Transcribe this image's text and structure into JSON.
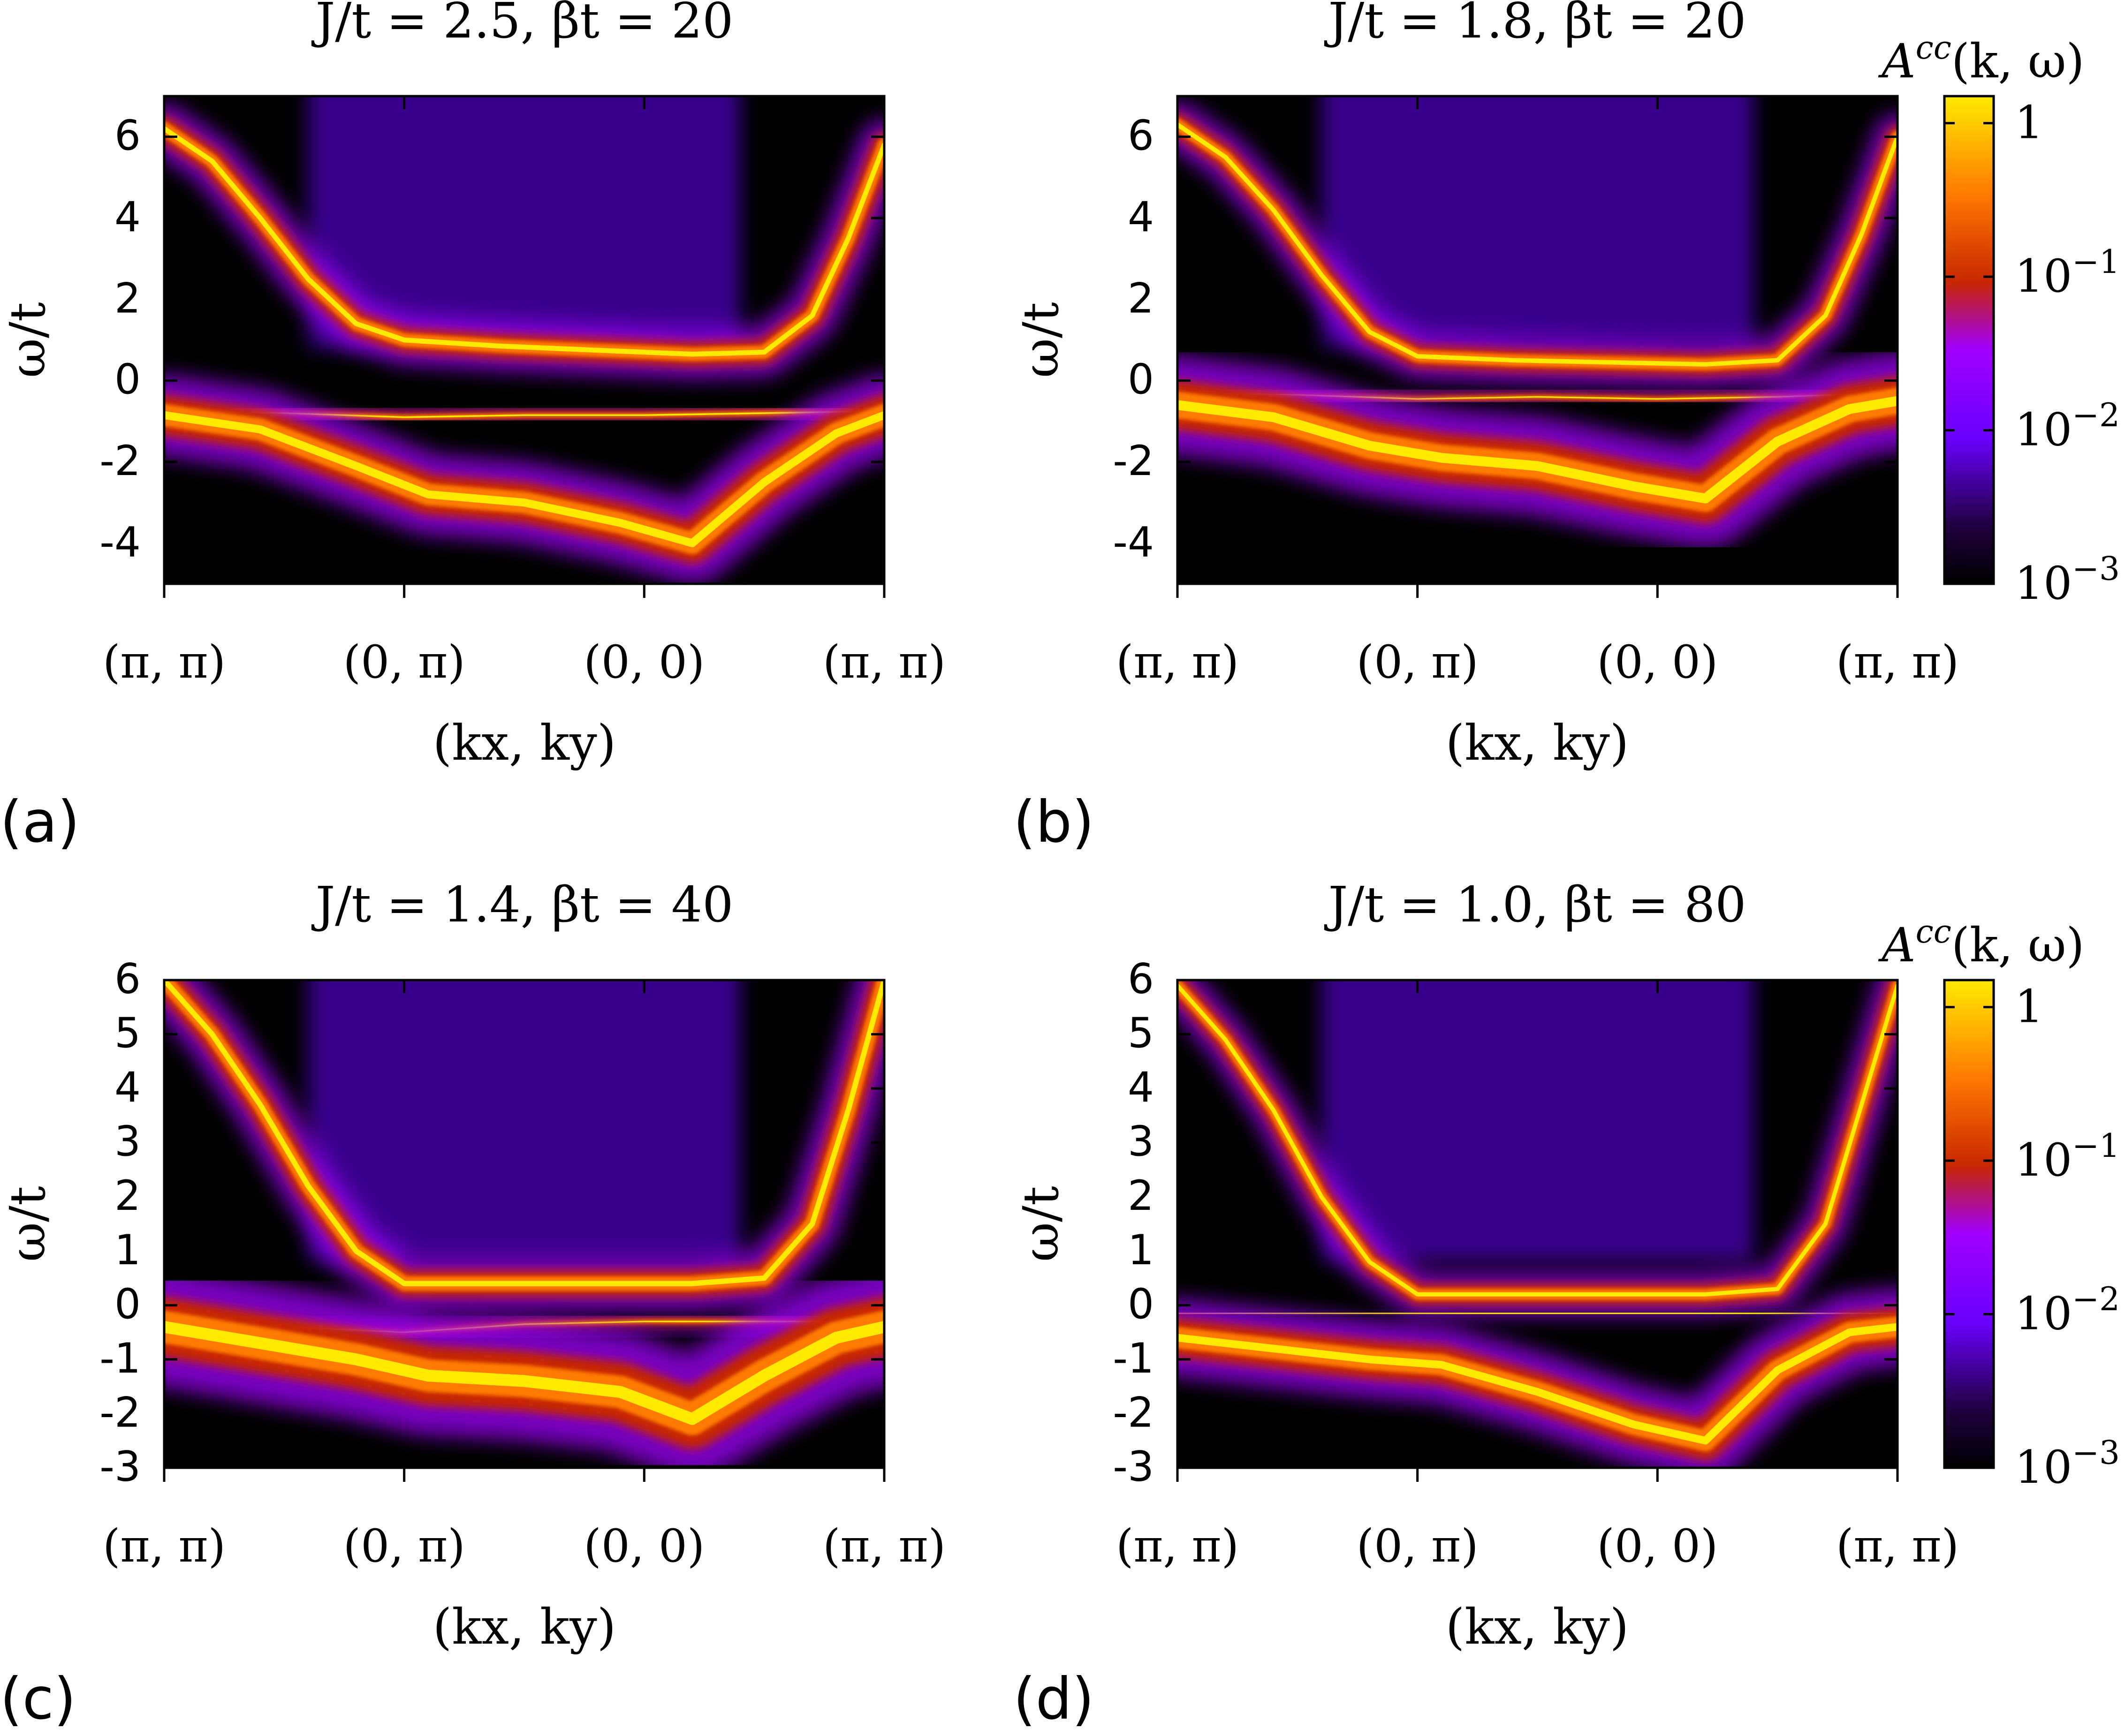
{
  "figure": {
    "colormap": {
      "black": "#000000",
      "dark_purple": "#200040",
      "purple": "#6a00ff",
      "violet": "#a000ff",
      "red": "#c82800",
      "orange": "#ff7a00",
      "yellow": "#ffea00"
    }
  },
  "chart_data": [
    {
      "panel_label": "(a)",
      "type": "heatmap",
      "title": "J/t = 2.5, βt = 20",
      "xlabel": "(kx, ky)",
      "ylabel": "ω/t",
      "ylim": [
        -5,
        7
      ],
      "yticks": [
        6,
        4,
        2,
        0,
        -2,
        -4
      ],
      "ytick_labels": [
        "6",
        "4",
        "2",
        "0",
        "-2",
        "-4"
      ],
      "xticks": [
        "(π, π)",
        "(0, π)",
        "(0, 0)",
        "(π, π)"
      ],
      "colorbar": null,
      "series": [
        {
          "name": "upper band",
          "x": [
            0,
            0.2,
            0.4,
            0.6,
            0.8,
            1.0,
            1.4,
            1.8,
            2.2,
            2.5,
            2.7,
            2.85,
            3.0
          ],
          "y": [
            6.2,
            5.4,
            4.0,
            2.5,
            1.4,
            1.0,
            0.85,
            0.75,
            0.65,
            0.7,
            1.6,
            3.5,
            5.8
          ],
          "width": 0.55
        },
        {
          "name": "lower flat band",
          "x": [
            0,
            0.5,
            1.0,
            1.5,
            2.0,
            2.5,
            3.0
          ],
          "y": [
            -0.75,
            -0.8,
            -0.9,
            -0.85,
            -0.85,
            -0.8,
            -0.75
          ],
          "width": 0.18
        },
        {
          "name": "lower broad band",
          "x": [
            0,
            0.4,
            0.8,
            1.1,
            1.5,
            1.9,
            2.2,
            2.5,
            2.8,
            3.0
          ],
          "y": [
            -0.85,
            -1.2,
            -2.1,
            -2.8,
            -3.0,
            -3.5,
            -4.0,
            -2.5,
            -1.3,
            -0.85
          ],
          "width": 0.9
        }
      ]
    },
    {
      "panel_label": "(b)",
      "type": "heatmap",
      "title": "J/t = 1.8, βt = 20",
      "xlabel": "(kx, ky)",
      "ylabel": "ω/t",
      "ylim": [
        -5,
        7
      ],
      "yticks": [
        6,
        4,
        2,
        0,
        -2,
        -4
      ],
      "ytick_labels": [
        "6",
        "4",
        "2",
        "0",
        "-2",
        "-4"
      ],
      "xticks": [
        "(π, π)",
        "(0, π)",
        "(0, 0)",
        "(π, π)"
      ],
      "colorbar": {
        "label": "A^cc(k, ω)",
        "scale": "log",
        "ticks": [
          "1",
          "10^-1",
          "10^-2",
          "10^-3"
        ],
        "range": [
          0.001,
          1.5
        ]
      },
      "series": [
        {
          "name": "upper band",
          "x": [
            0,
            0.2,
            0.4,
            0.6,
            0.8,
            1.0,
            1.4,
            1.8,
            2.2,
            2.5,
            2.7,
            2.85,
            3.0
          ],
          "y": [
            6.3,
            5.5,
            4.2,
            2.6,
            1.2,
            0.6,
            0.5,
            0.45,
            0.4,
            0.5,
            1.6,
            3.6,
            6.0
          ],
          "width": 0.5
        },
        {
          "name": "lower flat band",
          "x": [
            0,
            0.5,
            1.0,
            1.5,
            2.0,
            2.5,
            3.0
          ],
          "y": [
            -0.3,
            -0.35,
            -0.45,
            -0.4,
            -0.45,
            -0.4,
            -0.3
          ],
          "width": 0.15
        },
        {
          "name": "lower broad band",
          "x": [
            0,
            0.4,
            0.8,
            1.1,
            1.5,
            1.9,
            2.2,
            2.5,
            2.8,
            3.0
          ],
          "y": [
            -0.6,
            -0.9,
            -1.6,
            -1.9,
            -2.1,
            -2.6,
            -2.9,
            -1.5,
            -0.7,
            -0.5
          ],
          "width": 1.1
        }
      ]
    },
    {
      "panel_label": "(c)",
      "type": "heatmap",
      "title": "J/t = 1.4, βt = 40",
      "xlabel": "(kx, ky)",
      "ylabel": "ω/t",
      "ylim": [
        -3,
        6
      ],
      "yticks": [
        6,
        5,
        4,
        3,
        2,
        1,
        0,
        -1,
        -2,
        -3
      ],
      "ytick_labels": [
        "6",
        "5",
        "4",
        "3",
        "2",
        "1",
        "0",
        "-1",
        "-2",
        "-3"
      ],
      "xticks": [
        "(π, π)",
        "(0, π)",
        "(0, 0)",
        "(π, π)"
      ],
      "colorbar": null,
      "series": [
        {
          "name": "upper band",
          "x": [
            0,
            0.2,
            0.4,
            0.6,
            0.8,
            1.0,
            1.4,
            1.8,
            2.2,
            2.5,
            2.7,
            2.85,
            3.0
          ],
          "y": [
            6.0,
            5.0,
            3.7,
            2.2,
            1.0,
            0.4,
            0.4,
            0.4,
            0.4,
            0.5,
            1.5,
            3.6,
            6.0
          ],
          "width": 0.45
        },
        {
          "name": "lower flat band",
          "x": [
            0,
            0.5,
            1.0,
            1.5,
            2.0,
            2.5,
            3.0
          ],
          "y": [
            -0.3,
            -0.4,
            -0.5,
            -0.35,
            -0.3,
            -0.3,
            -0.3
          ],
          "width": 0.12
        },
        {
          "name": "lower broad band",
          "x": [
            0,
            0.4,
            0.8,
            1.1,
            1.5,
            1.9,
            2.2,
            2.5,
            2.8,
            3.0
          ],
          "y": [
            -0.4,
            -0.7,
            -1.0,
            -1.3,
            -1.4,
            -1.6,
            -2.1,
            -1.3,
            -0.6,
            -0.4
          ],
          "width": 1.0
        }
      ]
    },
    {
      "panel_label": "(d)",
      "type": "heatmap",
      "title": "J/t = 1.0, βt = 80",
      "xlabel": "(kx, ky)",
      "ylabel": "ω/t",
      "ylim": [
        -3,
        6
      ],
      "yticks": [
        6,
        5,
        4,
        3,
        2,
        1,
        0,
        -1,
        -2,
        -3
      ],
      "ytick_labels": [
        "6",
        "5",
        "4",
        "3",
        "2",
        "1",
        "0",
        "-1",
        "-2",
        "-3"
      ],
      "xticks": [
        "(π, π)",
        "(0, π)",
        "(0, 0)",
        "(π, π)"
      ],
      "colorbar": {
        "label": "A^cc(k, ω)",
        "scale": "log",
        "ticks": [
          "1",
          "10^-1",
          "10^-2",
          "10^-3"
        ],
        "range": [
          0.001,
          1.5
        ]
      },
      "series": [
        {
          "name": "upper band",
          "x": [
            0,
            0.2,
            0.4,
            0.6,
            0.8,
            1.0,
            1.4,
            1.8,
            2.2,
            2.5,
            2.7,
            2.85,
            3.0
          ],
          "y": [
            5.9,
            4.9,
            3.6,
            2.0,
            0.8,
            0.2,
            0.2,
            0.2,
            0.2,
            0.3,
            1.5,
            3.7,
            5.9
          ],
          "width": 0.35
        },
        {
          "name": "lower flat band",
          "x": [
            0,
            0.5,
            1.0,
            1.5,
            2.0,
            2.5,
            3.0
          ],
          "y": [
            -0.15,
            -0.15,
            -0.15,
            -0.15,
            -0.15,
            -0.15,
            -0.15
          ],
          "width": 0.08
        },
        {
          "name": "lower broad band",
          "x": [
            0,
            0.4,
            0.8,
            1.1,
            1.5,
            1.9,
            2.2,
            2.5,
            2.8,
            3.0
          ],
          "y": [
            -0.6,
            -0.8,
            -1.0,
            -1.1,
            -1.6,
            -2.2,
            -2.5,
            -1.2,
            -0.5,
            -0.4
          ],
          "width": 0.65
        }
      ]
    }
  ]
}
